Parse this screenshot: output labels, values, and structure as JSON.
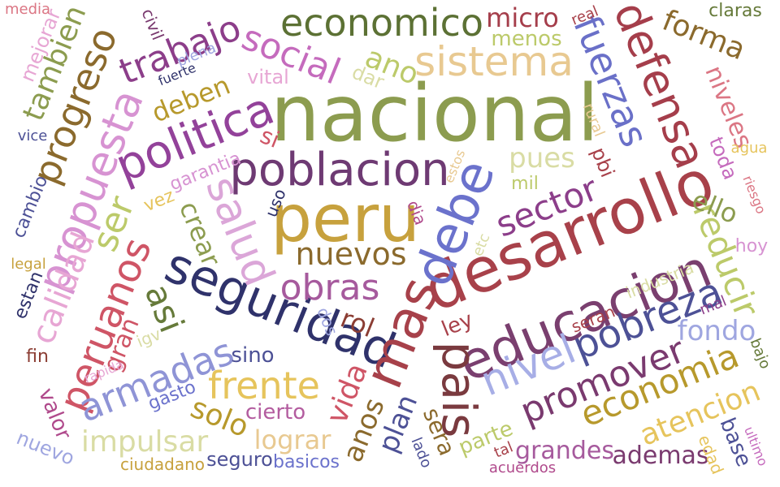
{
  "words": [
    {
      "text": "nacional",
      "color": "#8c9c4f"
    },
    {
      "text": "peru",
      "color": "#c7a13d"
    },
    {
      "text": "desarrollo",
      "color": "#a8414a"
    },
    {
      "text": "educacion",
      "color": "#7a3f6f"
    },
    {
      "text": "seguridad",
      "color": "#2f326b"
    },
    {
      "text": "poblacion",
      "color": "#6e3a73"
    },
    {
      "text": "politica",
      "color": "#93429a"
    },
    {
      "text": "debe",
      "color": "#6b72cc"
    },
    {
      "text": "mas",
      "color": "#a7414a"
    },
    {
      "text": "pais",
      "color": "#7a3a3f"
    },
    {
      "text": "economico",
      "color": "#5c7134"
    },
    {
      "text": "sistema",
      "color": "#e8c991"
    },
    {
      "text": "defensa",
      "color": "#a53e4b"
    },
    {
      "text": "fuerzas",
      "color": "#6a70c8"
    },
    {
      "text": "salud",
      "color": "#dba6d8"
    },
    {
      "text": "propuesta",
      "color": "#d793d2"
    },
    {
      "text": "social",
      "color": "#c56bbd"
    },
    {
      "text": "trabajo",
      "color": "#8c3e8a"
    },
    {
      "text": "progreso",
      "color": "#8b6a2d"
    },
    {
      "text": "peruanos",
      "color": "#cf5566"
    },
    {
      "text": "armadas",
      "color": "#8f94d6"
    },
    {
      "text": "obras",
      "color": "#a65a9d"
    },
    {
      "text": "nuevos",
      "color": "#8b6a2d"
    },
    {
      "text": "nivel",
      "color": "#a7aee6"
    },
    {
      "text": "pobreza",
      "color": "#4d5196"
    },
    {
      "text": "promover",
      "color": "#7a3a6f"
    },
    {
      "text": "economia",
      "color": "#b7992c"
    },
    {
      "text": "atencion",
      "color": "#e6c45c"
    },
    {
      "text": "frente",
      "color": "#e6c45c"
    },
    {
      "text": "sector",
      "color": "#8c3e8a"
    },
    {
      "text": "reducir",
      "color": "#bcca6a"
    },
    {
      "text": "impulsar",
      "color": "#d9dca4"
    },
    {
      "text": "lograr",
      "color": "#e8c991"
    },
    {
      "text": "solo",
      "color": "#b7992c"
    },
    {
      "text": "vida",
      "color": "#cf5566"
    },
    {
      "text": "calidad",
      "color": "#e7a6d4"
    },
    {
      "text": "ser",
      "color": "#bcca6a"
    },
    {
      "text": "asi",
      "color": "#667a3a"
    },
    {
      "text": "crear",
      "color": "#8c9c4f"
    },
    {
      "text": "tambien",
      "color": "#8c9c4f"
    },
    {
      "text": "ano",
      "color": "#bcca6a"
    },
    {
      "text": "forma",
      "color": "#8b6a2d"
    },
    {
      "text": "niveles",
      "color": "#db7684"
    },
    {
      "text": "ello",
      "color": "#8c9c4f"
    },
    {
      "text": "fondo",
      "color": "#9fa6e0"
    },
    {
      "text": "pues",
      "color": "#d9dca4"
    },
    {
      "text": "micro",
      "color": "#a53e4b"
    },
    {
      "text": "menos",
      "color": "#bcca6a"
    },
    {
      "text": "claras",
      "color": "#667a3a"
    },
    {
      "text": "deben",
      "color": "#b7992c"
    },
    {
      "text": "plan",
      "color": "#4d5196"
    },
    {
      "text": "anos",
      "color": "#8b6a2d"
    },
    {
      "text": "grandes",
      "color": "#a65a9d"
    },
    {
      "text": "ademas",
      "color": "#7a3a6f"
    },
    {
      "text": "rol",
      "color": "#8b3d33"
    },
    {
      "text": "sino",
      "color": "#4d5196"
    },
    {
      "text": "cierto",
      "color": "#b35c9f"
    },
    {
      "text": "ley",
      "color": "#a8414a"
    },
    {
      "text": "base",
      "color": "#4d5196"
    },
    {
      "text": "gran",
      "color": "#cf5566"
    },
    {
      "text": "parte",
      "color": "#bcca6a"
    },
    {
      "text": "sera",
      "color": "#8b6a2d"
    },
    {
      "text": "valor",
      "color": "#b04a8c"
    },
    {
      "text": "nuevo",
      "color": "#9fa6e0"
    },
    {
      "text": "ciudadano",
      "color": "#c7a13d"
    },
    {
      "text": "seguro",
      "color": "#4d5196"
    },
    {
      "text": "basicos",
      "color": "#6b72cc"
    },
    {
      "text": "gasto",
      "color": "#6b72cc"
    },
    {
      "text": "vital",
      "color": "#e7a6d4"
    },
    {
      "text": "dar",
      "color": "#d9dca4"
    },
    {
      "text": "plena",
      "color": "#9fa6e0"
    },
    {
      "text": "fuerte",
      "color": "#2f326b"
    },
    {
      "text": "civil",
      "color": "#7a3a6f"
    },
    {
      "text": "garantia",
      "color": "#d793d2"
    },
    {
      "text": "si",
      "color": "#cf5566"
    },
    {
      "text": "uso",
      "color": "#2f326b"
    },
    {
      "text": "vez",
      "color": "#e6c45c"
    },
    {
      "text": "dia",
      "color": "#b04a8c"
    },
    {
      "text": "estos",
      "color": "#e8c991"
    },
    {
      "text": "etc",
      "color": "#d9dca4"
    },
    {
      "text": "mil",
      "color": "#bcca6a"
    },
    {
      "text": "pbi",
      "color": "#a8414a"
    },
    {
      "text": "rural",
      "color": "#e8c991"
    },
    {
      "text": "industria",
      "color": "#d9dca4"
    },
    {
      "text": "seran",
      "color": "#a8414a"
    },
    {
      "text": "mal",
      "color": "#8c3e8a"
    },
    {
      "text": "hoy",
      "color": "#d793d2"
    },
    {
      "text": "agua",
      "color": "#e6c45c"
    },
    {
      "text": "riesgo",
      "color": "#db7684"
    },
    {
      "text": "toda",
      "color": "#c56bbd"
    },
    {
      "text": "media",
      "color": "#db7684"
    },
    {
      "text": "mejorar",
      "color": "#e7a6d4"
    },
    {
      "text": "vice",
      "color": "#4d5196"
    },
    {
      "text": "cambio",
      "color": "#4d5196"
    },
    {
      "text": "legal",
      "color": "#c7a13d"
    },
    {
      "text": "estan",
      "color": "#2f326b"
    },
    {
      "text": "fin",
      "color": "#8b3d33"
    },
    {
      "text": "igv",
      "color": "#d9dca4"
    },
    {
      "text": "rapida",
      "color": "#e7a6d4"
    },
    {
      "text": "dos",
      "color": "#9fa6e0"
    },
    {
      "text": "lado",
      "color": "#4d5196"
    },
    {
      "text": "tal",
      "color": "#a8414a"
    },
    {
      "text": "acuerdos",
      "color": "#b04a8c"
    },
    {
      "text": "edad",
      "color": "#e6c45c"
    },
    {
      "text": "ultimo",
      "color": "#c56bbd"
    },
    {
      "text": "bajo",
      "color": "#667a3a"
    },
    {
      "text": "real",
      "color": "#a8414a"
    }
  ]
}
